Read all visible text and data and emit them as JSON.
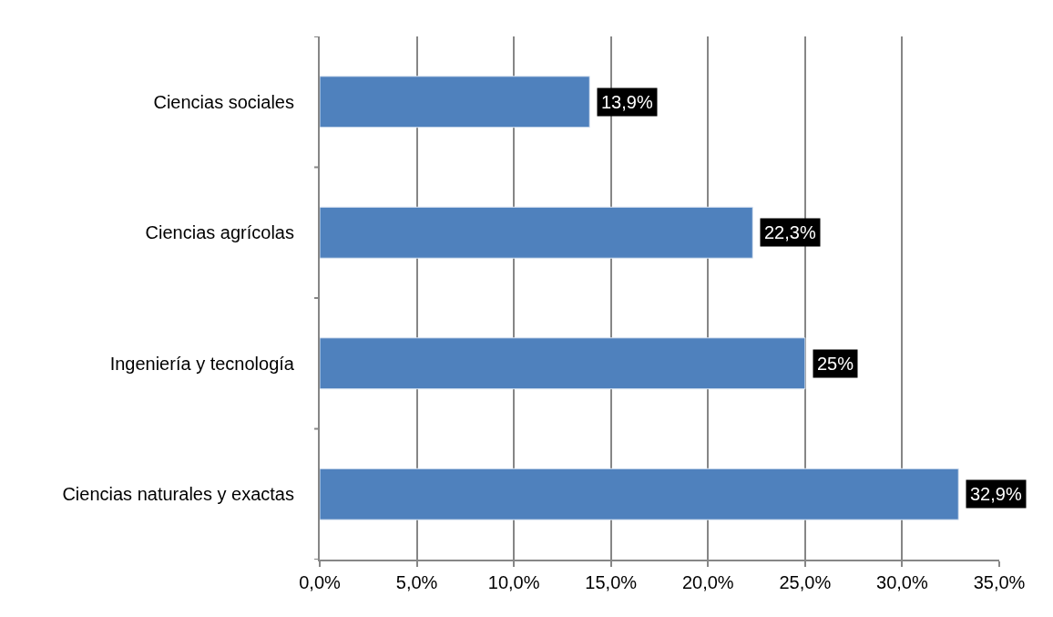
{
  "chart_data": {
    "type": "bar",
    "orientation": "horizontal",
    "categories": [
      "Ciencias sociales",
      "Ciencias agrícolas",
      "Ingeniería y tecnología",
      "Ciencias naturales y exactas"
    ],
    "values": [
      13.9,
      22.3,
      25,
      32.9
    ],
    "color": "#4f81bd",
    "value_labels": [
      "13,9%",
      "22,3%",
      "25%",
      "32,9%"
    ],
    "xlim": [
      0,
      35
    ],
    "xticks": [
      {
        "value": 0,
        "label": "0,0%"
      },
      {
        "value": 5,
        "label": "5,0%"
      },
      {
        "value": 10,
        "label": "10,0%"
      },
      {
        "value": 15,
        "label": "15,0%"
      },
      {
        "value": 20,
        "label": "20,0%"
      },
      {
        "value": 25,
        "label": "25,0%"
      },
      {
        "value": 30,
        "label": "30,0%"
      },
      {
        "value": 35,
        "label": "35,0%"
      }
    ],
    "grid": "x",
    "legend": false
  }
}
